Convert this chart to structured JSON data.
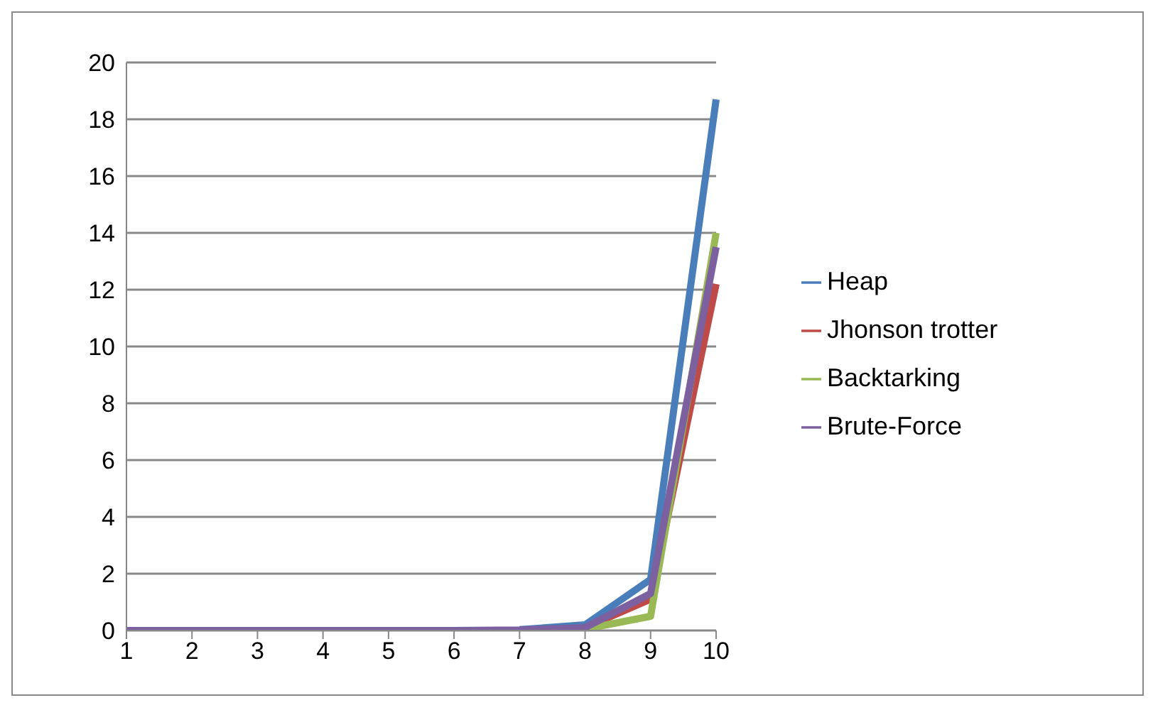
{
  "chart_data": {
    "type": "line",
    "categories": [
      "1",
      "2",
      "3",
      "4",
      "5",
      "6",
      "7",
      "8",
      "9",
      "10"
    ],
    "series": [
      {
        "name": "Heap",
        "color": "#4a7ebb",
        "values": [
          null,
          null,
          null,
          null,
          null,
          null,
          0.03,
          0.2,
          1.8,
          18.7
        ]
      },
      {
        "name": "Jhonson trotter",
        "color": "#be4b48",
        "values": [
          null,
          null,
          null,
          null,
          null,
          null,
          null,
          0.1,
          1.1,
          12.2
        ]
      },
      {
        "name": "Backtarking",
        "color": "#98b954",
        "values": [
          null,
          null,
          null,
          null,
          null,
          null,
          null,
          0.05,
          0.5,
          14
        ]
      },
      {
        "name": "Brute-Force",
        "color": "#7d60a0",
        "values": [
          0,
          0,
          0,
          0,
          0,
          0,
          0.02,
          0.1,
          1.3,
          13.5
        ]
      }
    ],
    "ylim": [
      0,
      20
    ],
    "yticks": [
      0,
      2,
      4,
      6,
      8,
      10,
      12,
      14,
      16,
      18,
      20
    ],
    "grid": "y",
    "legend": "right",
    "marker": "none",
    "line_style": "solid"
  }
}
